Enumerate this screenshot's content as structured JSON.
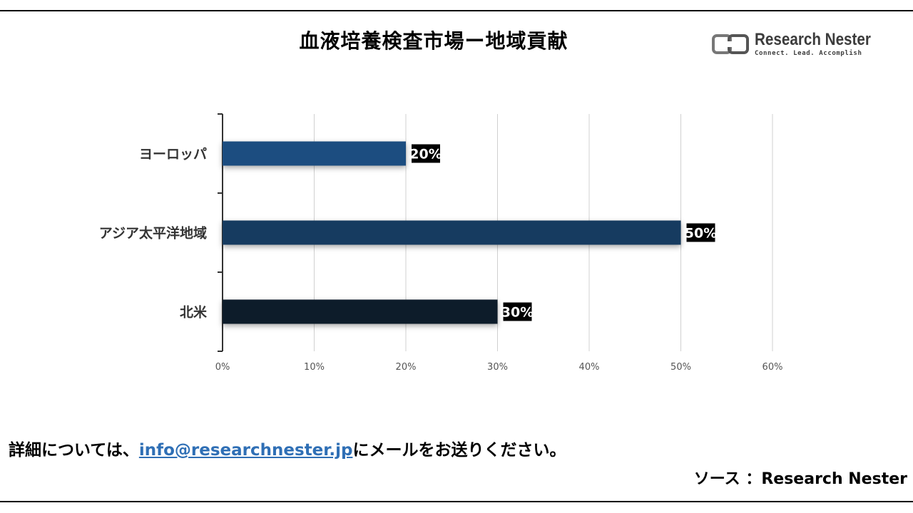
{
  "title": "血液培養検査市場ー地域貢献",
  "logo": {
    "name": "Research Nester",
    "tagline": "Connect. Lead. Accomplish"
  },
  "footer": {
    "prefix": "詳細については、",
    "email": "info@researchnester.jp",
    "suffix": "にメールをお送りください。",
    "source": "ソース ：Research Nester"
  },
  "chart_data": {
    "type": "bar",
    "orientation": "horizontal",
    "categories": [
      "ヨーロッパ",
      "アジア太平洋地域",
      "北米"
    ],
    "values": [
      20,
      50,
      30
    ],
    "data_labels": [
      "20%",
      "50%",
      "30%"
    ],
    "bar_colors": [
      "#1f4e80",
      "#173a60",
      "#0e1c2c"
    ],
    "xlim": [
      0,
      60
    ],
    "x_ticks": [
      "0%",
      "10%",
      "20%",
      "30%",
      "40%",
      "50%",
      "60%"
    ],
    "grid": "vertical",
    "title": "",
    "xlabel": "",
    "ylabel": ""
  }
}
